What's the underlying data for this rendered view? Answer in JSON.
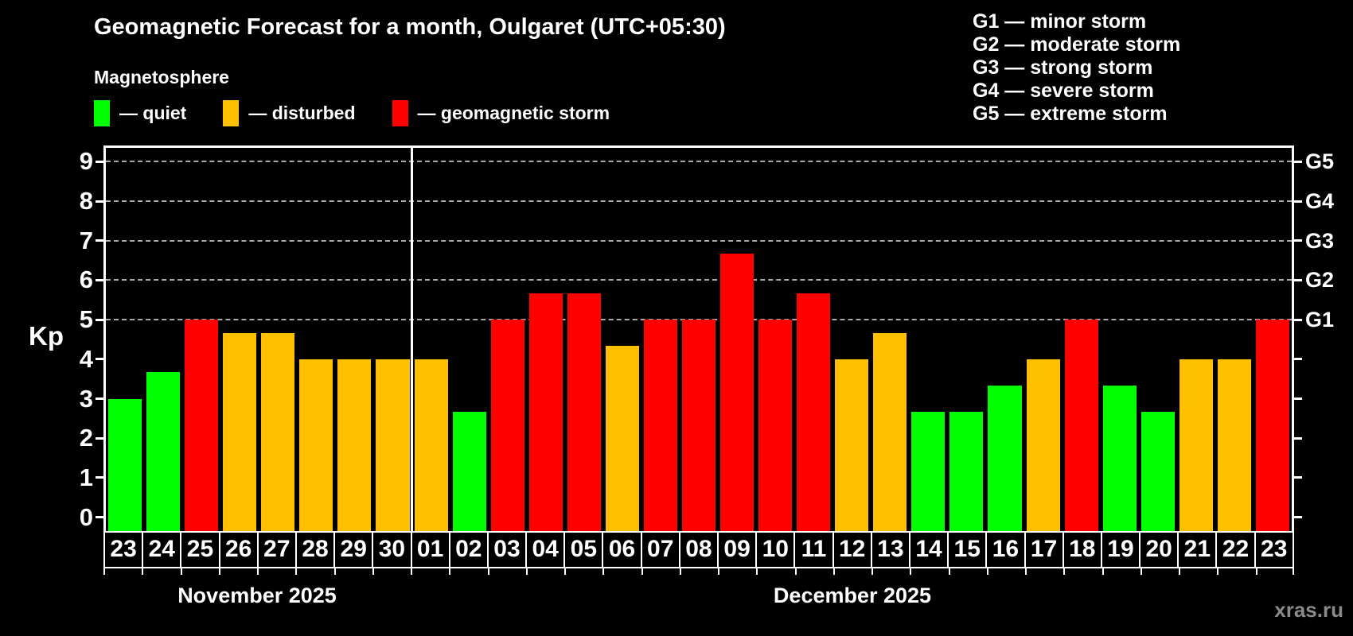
{
  "title": "Geomagnetic Forecast for a month, Oulgaret (UTC+05:30)",
  "subtitle": "Magnetosphere",
  "legend": {
    "items": [
      {
        "status": "quiet",
        "label": "— quiet",
        "color": "#00ff00"
      },
      {
        "status": "disturbed",
        "label": "— disturbed",
        "color": "#ffc000"
      },
      {
        "status": "storm",
        "label": "— geomagnetic storm",
        "color": "#ff0000"
      }
    ]
  },
  "g_legend": [
    "G1 — minor storm",
    "G2 — moderate storm",
    "G3 — strong storm",
    "G4 — severe storm",
    "G5 — extreme storm"
  ],
  "watermark": "xras.ru",
  "chart_data": {
    "type": "bar",
    "ylabel": "Kp",
    "xlabel": "",
    "ylim": [
      -0.35,
      9.35
    ],
    "y_ticks": [
      0,
      1,
      2,
      3,
      4,
      5,
      6,
      7,
      8,
      9
    ],
    "gridlines_kp": [
      5,
      6,
      7,
      8,
      9
    ],
    "grid": "dashed horizontal at storm levels only",
    "legend_position": "top",
    "right_axis_labels": [
      {
        "label": "G1",
        "kp": 5
      },
      {
        "label": "G2",
        "kp": 6
      },
      {
        "label": "G3",
        "kp": 7
      },
      {
        "label": "G4",
        "kp": 8
      },
      {
        "label": "G5",
        "kp": 9
      }
    ],
    "months": [
      {
        "label": "November 2025",
        "days": [
          {
            "day": "23",
            "kp": 3.0,
            "status": "quiet"
          },
          {
            "day": "24",
            "kp": 3.67,
            "status": "quiet"
          },
          {
            "day": "25",
            "kp": 5.0,
            "status": "storm"
          },
          {
            "day": "26",
            "kp": 4.67,
            "status": "disturbed"
          },
          {
            "day": "27",
            "kp": 4.67,
            "status": "disturbed"
          },
          {
            "day": "28",
            "kp": 4.0,
            "status": "disturbed"
          },
          {
            "day": "29",
            "kp": 4.0,
            "status": "disturbed"
          },
          {
            "day": "30",
            "kp": 4.0,
            "status": "disturbed"
          }
        ]
      },
      {
        "label": "December 2025",
        "days": [
          {
            "day": "01",
            "kp": 4.0,
            "status": "disturbed"
          },
          {
            "day": "02",
            "kp": 2.67,
            "status": "quiet"
          },
          {
            "day": "03",
            "kp": 5.0,
            "status": "storm"
          },
          {
            "day": "04",
            "kp": 5.67,
            "status": "storm"
          },
          {
            "day": "05",
            "kp": 5.67,
            "status": "storm"
          },
          {
            "day": "06",
            "kp": 4.33,
            "status": "disturbed"
          },
          {
            "day": "07",
            "kp": 5.0,
            "status": "storm"
          },
          {
            "day": "08",
            "kp": 5.0,
            "status": "storm"
          },
          {
            "day": "09",
            "kp": 6.67,
            "status": "storm"
          },
          {
            "day": "10",
            "kp": 5.0,
            "status": "storm"
          },
          {
            "day": "11",
            "kp": 5.67,
            "status": "storm"
          },
          {
            "day": "12",
            "kp": 4.0,
            "status": "disturbed"
          },
          {
            "day": "13",
            "kp": 4.67,
            "status": "disturbed"
          },
          {
            "day": "14",
            "kp": 2.67,
            "status": "quiet"
          },
          {
            "day": "15",
            "kp": 2.67,
            "status": "quiet"
          },
          {
            "day": "16",
            "kp": 3.33,
            "status": "quiet"
          },
          {
            "day": "17",
            "kp": 4.0,
            "status": "disturbed"
          },
          {
            "day": "18",
            "kp": 5.0,
            "status": "storm"
          },
          {
            "day": "19",
            "kp": 3.33,
            "status": "quiet"
          },
          {
            "day": "20",
            "kp": 2.67,
            "status": "quiet"
          },
          {
            "day": "21",
            "kp": 4.0,
            "status": "disturbed"
          },
          {
            "day": "22",
            "kp": 4.0,
            "status": "disturbed"
          },
          {
            "day": "23",
            "kp": 5.0,
            "status": "storm"
          }
        ]
      }
    ],
    "colors": {
      "quiet": "#00ff00",
      "disturbed": "#ffc000",
      "storm": "#ff0000",
      "grid": "#aaaaaa",
      "frame": "#ffffff",
      "background": "#000000"
    }
  }
}
